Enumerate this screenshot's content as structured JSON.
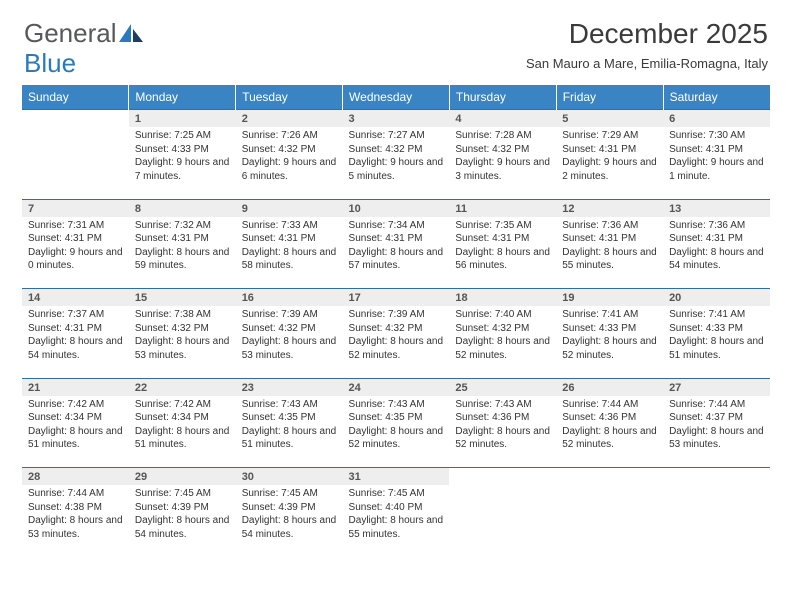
{
  "logo": {
    "text1": "General",
    "text2": "Blue",
    "color_gray": "#57585a",
    "color_blue": "#2a7ac0"
  },
  "title": "December 2025",
  "subtitle": "San Mauro a Mare, Emilia-Romagna, Italy",
  "columns": [
    "Sunday",
    "Monday",
    "Tuesday",
    "Wednesday",
    "Thursday",
    "Friday",
    "Saturday"
  ],
  "header_bg": "#3b84c4",
  "header_fg": "#ffffff",
  "daynum_bg": "#eeeeee",
  "row_border": "#2f6ea5",
  "weeks": [
    {
      "nums": [
        "",
        "1",
        "2",
        "3",
        "4",
        "5",
        "6"
      ],
      "cells": [
        "",
        "Sunrise: 7:25 AM\nSunset: 4:33 PM\nDaylight: 9 hours and 7 minutes.",
        "Sunrise: 7:26 AM\nSunset: 4:32 PM\nDaylight: 9 hours and 6 minutes.",
        "Sunrise: 7:27 AM\nSunset: 4:32 PM\nDaylight: 9 hours and 5 minutes.",
        "Sunrise: 7:28 AM\nSunset: 4:32 PM\nDaylight: 9 hours and 3 minutes.",
        "Sunrise: 7:29 AM\nSunset: 4:31 PM\nDaylight: 9 hours and 2 minutes.",
        "Sunrise: 7:30 AM\nSunset: 4:31 PM\nDaylight: 9 hours and 1 minute."
      ]
    },
    {
      "nums": [
        "7",
        "8",
        "9",
        "10",
        "11",
        "12",
        "13"
      ],
      "cells": [
        "Sunrise: 7:31 AM\nSunset: 4:31 PM\nDaylight: 9 hours and 0 minutes.",
        "Sunrise: 7:32 AM\nSunset: 4:31 PM\nDaylight: 8 hours and 59 minutes.",
        "Sunrise: 7:33 AM\nSunset: 4:31 PM\nDaylight: 8 hours and 58 minutes.",
        "Sunrise: 7:34 AM\nSunset: 4:31 PM\nDaylight: 8 hours and 57 minutes.",
        "Sunrise: 7:35 AM\nSunset: 4:31 PM\nDaylight: 8 hours and 56 minutes.",
        "Sunrise: 7:36 AM\nSunset: 4:31 PM\nDaylight: 8 hours and 55 minutes.",
        "Sunrise: 7:36 AM\nSunset: 4:31 PM\nDaylight: 8 hours and 54 minutes."
      ]
    },
    {
      "nums": [
        "14",
        "15",
        "16",
        "17",
        "18",
        "19",
        "20"
      ],
      "cells": [
        "Sunrise: 7:37 AM\nSunset: 4:31 PM\nDaylight: 8 hours and 54 minutes.",
        "Sunrise: 7:38 AM\nSunset: 4:32 PM\nDaylight: 8 hours and 53 minutes.",
        "Sunrise: 7:39 AM\nSunset: 4:32 PM\nDaylight: 8 hours and 53 minutes.",
        "Sunrise: 7:39 AM\nSunset: 4:32 PM\nDaylight: 8 hours and 52 minutes.",
        "Sunrise: 7:40 AM\nSunset: 4:32 PM\nDaylight: 8 hours and 52 minutes.",
        "Sunrise: 7:41 AM\nSunset: 4:33 PM\nDaylight: 8 hours and 52 minutes.",
        "Sunrise: 7:41 AM\nSunset: 4:33 PM\nDaylight: 8 hours and 51 minutes."
      ]
    },
    {
      "nums": [
        "21",
        "22",
        "23",
        "24",
        "25",
        "26",
        "27"
      ],
      "cells": [
        "Sunrise: 7:42 AM\nSunset: 4:34 PM\nDaylight: 8 hours and 51 minutes.",
        "Sunrise: 7:42 AM\nSunset: 4:34 PM\nDaylight: 8 hours and 51 minutes.",
        "Sunrise: 7:43 AM\nSunset: 4:35 PM\nDaylight: 8 hours and 51 minutes.",
        "Sunrise: 7:43 AM\nSunset: 4:35 PM\nDaylight: 8 hours and 52 minutes.",
        "Sunrise: 7:43 AM\nSunset: 4:36 PM\nDaylight: 8 hours and 52 minutes.",
        "Sunrise: 7:44 AM\nSunset: 4:36 PM\nDaylight: 8 hours and 52 minutes.",
        "Sunrise: 7:44 AM\nSunset: 4:37 PM\nDaylight: 8 hours and 53 minutes."
      ]
    },
    {
      "nums": [
        "28",
        "29",
        "30",
        "31",
        "",
        "",
        ""
      ],
      "cells": [
        "Sunrise: 7:44 AM\nSunset: 4:38 PM\nDaylight: 8 hours and 53 minutes.",
        "Sunrise: 7:45 AM\nSunset: 4:39 PM\nDaylight: 8 hours and 54 minutes.",
        "Sunrise: 7:45 AM\nSunset: 4:39 PM\nDaylight: 8 hours and 54 minutes.",
        "Sunrise: 7:45 AM\nSunset: 4:40 PM\nDaylight: 8 hours and 55 minutes.",
        "",
        "",
        ""
      ]
    }
  ]
}
